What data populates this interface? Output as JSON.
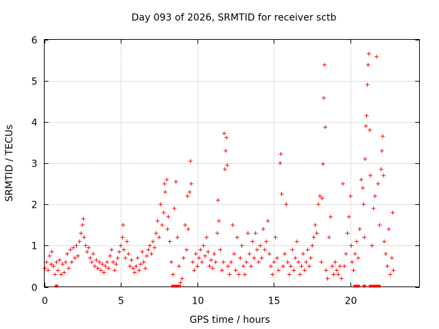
{
  "chart_data": {
    "type": "scatter",
    "title": "Day 093 of 2026, SRMTID for receiver sctb",
    "xlabel": "GPS time / hours",
    "ylabel": "SRMTID / TECUs",
    "xlim": [
      0,
      24.5
    ],
    "ylim": [
      0,
      6
    ],
    "xticks": [
      0,
      5,
      10,
      15,
      20
    ],
    "yticks": [
      0,
      1,
      2,
      3,
      4,
      5,
      6
    ],
    "xtick_labels": [
      "0",
      "5",
      "10",
      "15",
      "20"
    ],
    "ytick_labels": [
      "0",
      "1",
      "2",
      "3",
      "4",
      "5",
      "6"
    ],
    "grid": true,
    "marker": "+",
    "marker_color": "#ff0000",
    "series": [
      {
        "name": "SRMTID",
        "points": [
          [
            0.05,
            0.45
          ],
          [
            0.15,
            0.6
          ],
          [
            0.25,
            0.4
          ],
          [
            0.35,
            0.75
          ],
          [
            0.45,
            0.55
          ],
          [
            0.5,
            0.85
          ],
          [
            0.6,
            0.5
          ],
          [
            0.7,
            0.3
          ],
          [
            0.8,
            0.6
          ],
          [
            0.9,
            0.4
          ],
          [
            1.0,
            0.65
          ],
          [
            1.1,
            0.3
          ],
          [
            1.2,
            0.55
          ],
          [
            1.3,
            0.35
          ],
          [
            1.4,
            0.6
          ],
          [
            1.5,
            0.8
          ],
          [
            1.6,
            0.45
          ],
          [
            1.7,
            0.9
          ],
          [
            1.8,
            0.6
          ],
          [
            1.9,
            0.95
          ],
          [
            2.0,
            0.7
          ],
          [
            2.1,
            1.0
          ],
          [
            2.2,
            0.75
          ],
          [
            2.3,
            1.1
          ],
          [
            2.4,
            1.3
          ],
          [
            2.5,
            1.5
          ],
          [
            2.55,
            1.65
          ],
          [
            2.6,
            1.2
          ],
          [
            2.7,
            1.0
          ],
          [
            2.8,
            0.85
          ],
          [
            2.9,
            0.95
          ],
          [
            3.0,
            0.7
          ],
          [
            3.1,
            0.6
          ],
          [
            3.2,
            0.8
          ],
          [
            3.3,
            0.5
          ],
          [
            3.4,
            0.65
          ],
          [
            3.5,
            0.45
          ],
          [
            3.6,
            0.6
          ],
          [
            3.7,
            0.4
          ],
          [
            3.8,
            0.55
          ],
          [
            3.9,
            0.35
          ],
          [
            4.0,
            0.5
          ],
          [
            4.1,
            0.6
          ],
          [
            4.2,
            0.45
          ],
          [
            4.3,
            0.75
          ],
          [
            4.4,
            0.9
          ],
          [
            4.5,
            0.6
          ],
          [
            4.6,
            0.4
          ],
          [
            4.7,
            0.55
          ],
          [
            4.8,
            0.7
          ],
          [
            4.9,
            0.85
          ],
          [
            5.0,
            1.0
          ],
          [
            5.1,
            1.2
          ],
          [
            5.15,
            1.5
          ],
          [
            5.2,
            0.9
          ],
          [
            5.3,
            0.7
          ],
          [
            5.4,
            1.1
          ],
          [
            5.5,
            0.8
          ],
          [
            5.6,
            0.5
          ],
          [
            5.7,
            0.65
          ],
          [
            5.8,
            0.45
          ],
          [
            5.9,
            0.35
          ],
          [
            6.0,
            0.5
          ],
          [
            6.1,
            0.7
          ],
          [
            6.2,
            0.4
          ],
          [
            6.3,
            0.55
          ],
          [
            6.4,
            0.85
          ],
          [
            6.5,
            0.6
          ],
          [
            6.6,
            0.45
          ],
          [
            6.7,
            0.75
          ],
          [
            6.8,
            0.9
          ],
          [
            6.9,
            1.0
          ],
          [
            7.0,
            0.8
          ],
          [
            7.1,
            1.1
          ],
          [
            7.2,
            0.95
          ],
          [
            7.3,
            1.3
          ],
          [
            7.4,
            1.6
          ],
          [
            7.5,
            1.2
          ],
          [
            7.6,
            2.0
          ],
          [
            7.7,
            1.5
          ],
          [
            7.8,
            1.8
          ],
          [
            7.85,
            2.5
          ],
          [
            7.9,
            2.3
          ],
          [
            8.0,
            2.6
          ],
          [
            8.05,
            1.4
          ],
          [
            8.1,
            1.7
          ],
          [
            8.2,
            1.1
          ],
          [
            8.3,
            0.6
          ],
          [
            8.4,
            0.3
          ],
          [
            8.5,
            1.9
          ],
          [
            8.6,
            2.55
          ],
          [
            8.7,
            1.2
          ],
          [
            8.8,
            0.5
          ],
          [
            8.9,
            0.1
          ],
          [
            9.0,
            0.2
          ],
          [
            9.1,
            0.7
          ],
          [
            9.2,
            1.5
          ],
          [
            9.3,
            0.9
          ],
          [
            9.35,
            2.2
          ],
          [
            9.4,
            1.4
          ],
          [
            9.5,
            2.3
          ],
          [
            9.55,
            3.05
          ],
          [
            9.6,
            2.5
          ],
          [
            9.7,
            0.6
          ],
          [
            9.8,
            0.4
          ],
          [
            9.9,
            0.8
          ],
          [
            10.0,
            0.5
          ],
          [
            10.1,
            0.7
          ],
          [
            10.2,
            0.9
          ],
          [
            10.3,
            0.6
          ],
          [
            10.4,
            1.0
          ],
          [
            10.5,
            0.75
          ],
          [
            10.6,
            1.2
          ],
          [
            10.7,
            0.85
          ],
          [
            10.8,
            0.5
          ],
          [
            10.9,
            0.65
          ],
          [
            11.0,
            0.45
          ],
          [
            11.1,
            0.8
          ],
          [
            11.2,
            0.6
          ],
          [
            11.3,
            1.3
          ],
          [
            11.35,
            2.1
          ],
          [
            11.4,
            1.6
          ],
          [
            11.5,
            0.9
          ],
          [
            11.6,
            0.4
          ],
          [
            11.7,
            0.6
          ],
          [
            11.75,
            3.72
          ],
          [
            11.8,
            2.85
          ],
          [
            11.85,
            3.3
          ],
          [
            11.9,
            3.62
          ],
          [
            11.95,
            2.95
          ],
          [
            12.0,
            0.5
          ],
          [
            12.1,
            0.3
          ],
          [
            12.2,
            0.6
          ],
          [
            12.3,
            1.5
          ],
          [
            12.4,
            0.8
          ],
          [
            12.5,
            0.4
          ],
          [
            12.6,
            1.2
          ],
          [
            12.7,
            0.3
          ],
          [
            12.8,
            0.7
          ],
          [
            12.9,
            1.0
          ],
          [
            13.0,
            0.5
          ],
          [
            13.1,
            0.3
          ],
          [
            13.2,
            0.6
          ],
          [
            13.3,
            1.3
          ],
          [
            13.4,
            0.8
          ],
          [
            13.5,
            0.5
          ],
          [
            13.6,
            1.1
          ],
          [
            13.7,
            0.7
          ],
          [
            13.8,
            1.3
          ],
          [
            13.9,
            0.9
          ],
          [
            14.0,
            0.6
          ],
          [
            14.1,
            1.0
          ],
          [
            14.2,
            0.7
          ],
          [
            14.3,
            1.4
          ],
          [
            14.4,
            0.9
          ],
          [
            14.5,
            1.1
          ],
          [
            14.6,
            1.6
          ],
          [
            14.7,
            0.8
          ],
          [
            14.8,
            0.5
          ],
          [
            14.9,
            0.3
          ],
          [
            15.0,
            0.6
          ],
          [
            15.1,
            1.2
          ],
          [
            15.2,
            0.7
          ],
          [
            15.3,
            0.4
          ],
          [
            15.4,
            3.0
          ],
          [
            15.45,
            3.22
          ],
          [
            15.5,
            2.25
          ],
          [
            15.6,
            0.5
          ],
          [
            15.7,
            0.8
          ],
          [
            15.8,
            2.0
          ],
          [
            15.9,
            0.6
          ],
          [
            16.0,
            0.3
          ],
          [
            16.1,
            0.5
          ],
          [
            16.2,
            0.9
          ],
          [
            16.3,
            0.4
          ],
          [
            16.4,
            0.7
          ],
          [
            16.5,
            1.1
          ],
          [
            16.6,
            0.6
          ],
          [
            16.7,
            0.3
          ],
          [
            16.8,
            0.5
          ],
          [
            16.9,
            0.8
          ],
          [
            17.0,
            0.4
          ],
          [
            17.1,
            0.6
          ],
          [
            17.2,
            0.9
          ],
          [
            17.3,
            0.5
          ],
          [
            17.4,
            0.7
          ],
          [
            17.5,
            1.0
          ],
          [
            17.6,
            1.2
          ],
          [
            17.7,
            1.5
          ],
          [
            17.8,
            1.3
          ],
          [
            17.9,
            2.0
          ],
          [
            18.0,
            2.2
          ],
          [
            18.1,
            0.6
          ],
          [
            18.15,
            2.15
          ],
          [
            18.2,
            2.98
          ],
          [
            18.25,
            4.58
          ],
          [
            18.3,
            5.38
          ],
          [
            18.35,
            3.87
          ],
          [
            18.4,
            0.4
          ],
          [
            18.5,
            0.2
          ],
          [
            18.6,
            1.2
          ],
          [
            18.7,
            1.7
          ],
          [
            18.8,
            0.5
          ],
          [
            18.9,
            0.3
          ],
          [
            19.0,
            0.6
          ],
          [
            19.1,
            0.4
          ],
          [
            19.2,
            0.3
          ],
          [
            19.3,
            0.5
          ],
          [
            19.4,
            0.2
          ],
          [
            19.5,
            2.5
          ],
          [
            19.6,
            0.5
          ],
          [
            19.7,
            0.8
          ],
          [
            19.8,
            1.3
          ],
          [
            19.9,
            1.7
          ],
          [
            20.0,
            2.2
          ],
          [
            20.05,
            1.0
          ],
          [
            20.1,
            0.6
          ],
          [
            20.2,
            0.4
          ],
          [
            20.3,
            0.8
          ],
          [
            20.4,
            1.1
          ],
          [
            20.5,
            0.7
          ],
          [
            20.6,
            1.4
          ],
          [
            20.7,
            2.6
          ],
          [
            20.8,
            2.4
          ],
          [
            20.85,
            2.0
          ],
          [
            20.9,
            1.2
          ],
          [
            20.95,
            3.1
          ],
          [
            21.0,
            3.9
          ],
          [
            21.05,
            4.15
          ],
          [
            21.1,
            4.9
          ],
          [
            21.15,
            5.38
          ],
          [
            21.2,
            5.65
          ],
          [
            21.25,
            3.8
          ],
          [
            21.3,
            2.7
          ],
          [
            21.4,
            1.0
          ],
          [
            21.5,
            1.9
          ],
          [
            21.6,
            2.2
          ],
          [
            21.7,
            5.58
          ],
          [
            21.8,
            2.5
          ],
          [
            21.9,
            1.5
          ],
          [
            22.0,
            2.85
          ],
          [
            22.05,
            3.3
          ],
          [
            22.1,
            3.65
          ],
          [
            22.15,
            2.7
          ],
          [
            22.2,
            1.1
          ],
          [
            22.3,
            0.8
          ],
          [
            22.4,
            0.5
          ],
          [
            22.5,
            1.4
          ],
          [
            22.6,
            0.3
          ],
          [
            22.7,
            0.7
          ],
          [
            22.75,
            1.8
          ],
          [
            22.8,
            0.4
          ]
        ],
        "axis_markers_x": [
          0.8,
          8.4,
          8.5,
          8.6,
          8.7,
          8.8,
          20.3,
          20.5,
          20.9,
          21.3,
          21.35,
          21.4,
          21.5,
          21.6,
          21.7,
          21.8,
          21.85
        ]
      }
    ]
  }
}
